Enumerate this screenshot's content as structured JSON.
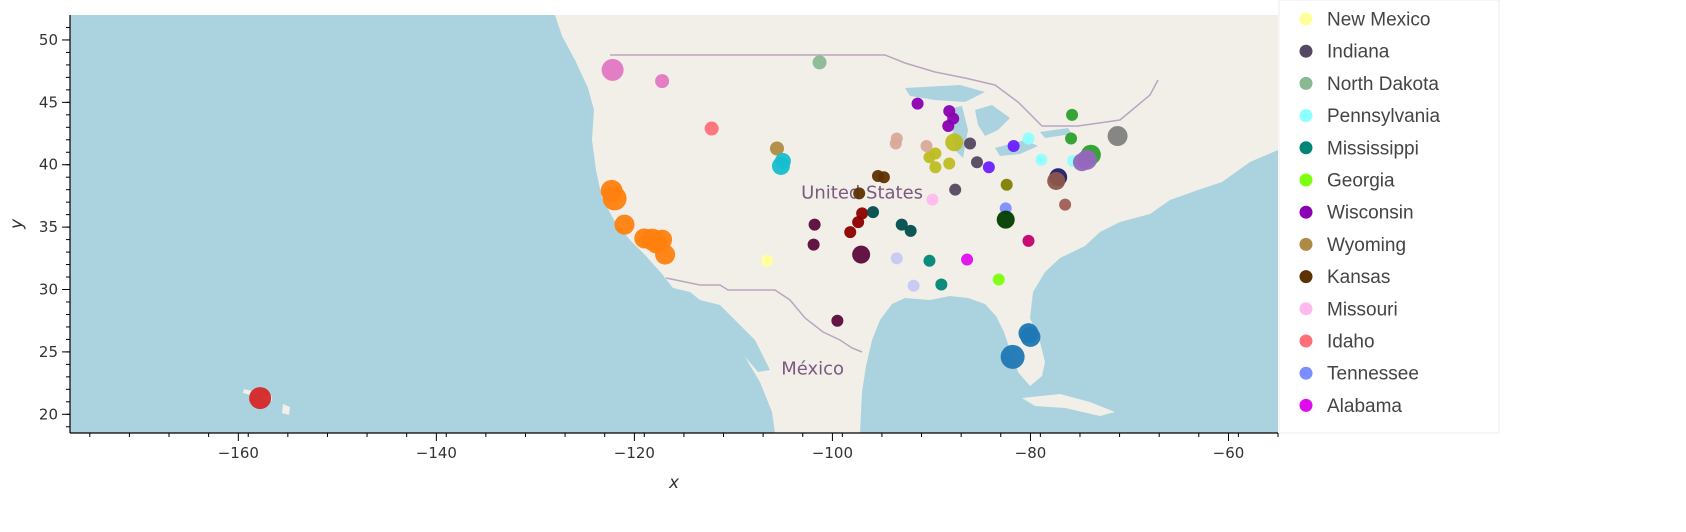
{
  "chart_data": {
    "type": "scatter",
    "xlabel": "x",
    "ylabel": "y",
    "xlim": [
      -177,
      -55
    ],
    "ylim": [
      18.5,
      52
    ],
    "x_ticks": [
      -160,
      -140,
      -120,
      -100,
      -80,
      -60
    ],
    "y_ticks": [
      20,
      25,
      30,
      35,
      40,
      45,
      50
    ],
    "basemap": {
      "ocean_color": "#aad3df",
      "land_color": "#f2efe9",
      "labels": [
        {
          "text": "United States",
          "lon": -97,
          "lat": 37.3
        },
        {
          "text": "México",
          "lon": -102,
          "lat": 23.2
        }
      ]
    },
    "legend": [
      {
        "name": "New Mexico",
        "color": "#ffff9a"
      },
      {
        "name": "Indiana",
        "color": "#544863"
      },
      {
        "name": "North Dakota",
        "color": "#8ab892"
      },
      {
        "name": "Pennsylvania",
        "color": "#8effff"
      },
      {
        "name": "Mississippi",
        "color": "#008676"
      },
      {
        "name": "Georgia",
        "color": "#7dff0f"
      },
      {
        "name": "Wisconsin",
        "color": "#8a00b2"
      },
      {
        "name": "Wyoming",
        "color": "#ad8b43"
      },
      {
        "name": "Kansas",
        "color": "#5e3100"
      },
      {
        "name": "Missouri",
        "color": "#ffbaed"
      },
      {
        "name": "Idaho",
        "color": "#ff7077"
      },
      {
        "name": "Tennessee",
        "color": "#7b8dff"
      },
      {
        "name": "Alabama",
        "color": "#e00cf0"
      }
    ],
    "points": [
      {
        "x": -157.8,
        "y": 21.3,
        "r": 11,
        "color": "#d62728"
      },
      {
        "x": -122.2,
        "y": 47.6,
        "r": 11,
        "color": "#e377c2"
      },
      {
        "x": -117.2,
        "y": 46.7,
        "r": 7,
        "color": "#e377c2"
      },
      {
        "x": -112.2,
        "y": 42.9,
        "r": 7,
        "color": "#ff7077"
      },
      {
        "x": -101.3,
        "y": 48.2,
        "r": 7,
        "color": "#8ab892"
      },
      {
        "x": -105.6,
        "y": 41.3,
        "r": 7,
        "color": "#ad8b43"
      },
      {
        "x": -105.0,
        "y": 40.3,
        "r": 8,
        "color": "#17becf"
      },
      {
        "x": -105.2,
        "y": 39.9,
        "r": 9,
        "color": "#17becf"
      },
      {
        "x": -122.3,
        "y": 37.9,
        "r": 11,
        "color": "#ff7f0e"
      },
      {
        "x": -122.0,
        "y": 37.3,
        "r": 12,
        "color": "#ff7f0e"
      },
      {
        "x": -121.0,
        "y": 35.2,
        "r": 10,
        "color": "#ff7f0e"
      },
      {
        "x": -119.0,
        "y": 34.1,
        "r": 10,
        "color": "#ff7f0e"
      },
      {
        "x": -118.2,
        "y": 34.0,
        "r": 11,
        "color": "#ff7f0e"
      },
      {
        "x": -117.8,
        "y": 33.7,
        "r": 10,
        "color": "#ff7f0e"
      },
      {
        "x": -117.2,
        "y": 34.0,
        "r": 10,
        "color": "#ff7f0e"
      },
      {
        "x": -116.9,
        "y": 32.8,
        "r": 10,
        "color": "#ff7f0e"
      },
      {
        "x": -106.6,
        "y": 32.3,
        "r": 6,
        "color": "#ffff9a"
      },
      {
        "x": -101.8,
        "y": 35.2,
        "r": 6,
        "color": "#5b0a3a"
      },
      {
        "x": -101.9,
        "y": 33.6,
        "r": 6,
        "color": "#5b0a3a"
      },
      {
        "x": -97.1,
        "y": 32.8,
        "r": 9,
        "color": "#5b0a3a"
      },
      {
        "x": -99.5,
        "y": 27.5,
        "r": 6,
        "color": "#5b0a3a"
      },
      {
        "x": -97.3,
        "y": 37.7,
        "r": 6,
        "color": "#5e3100"
      },
      {
        "x": -95.4,
        "y": 39.1,
        "r": 6,
        "color": "#5e3100"
      },
      {
        "x": -94.8,
        "y": 39.0,
        "r": 6,
        "color": "#5e3100"
      },
      {
        "x": -97.0,
        "y": 36.1,
        "r": 6,
        "color": "#8b0000"
      },
      {
        "x": -97.4,
        "y": 35.4,
        "r": 6,
        "color": "#8b0000"
      },
      {
        "x": -98.2,
        "y": 34.6,
        "r": 6,
        "color": "#8b0000"
      },
      {
        "x": -95.9,
        "y": 36.2,
        "r": 6,
        "color": "#004d4d"
      },
      {
        "x": -93.0,
        "y": 35.2,
        "r": 6,
        "color": "#004d4d"
      },
      {
        "x": -92.1,
        "y": 34.7,
        "r": 6,
        "color": "#004d4d"
      },
      {
        "x": -93.5,
        "y": 32.5,
        "r": 6,
        "color": "#c6c8f5"
      },
      {
        "x": -91.8,
        "y": 30.3,
        "r": 6,
        "color": "#c6c8f5"
      },
      {
        "x": -90.2,
        "y": 32.3,
        "r": 6,
        "color": "#008676"
      },
      {
        "x": -89.0,
        "y": 30.4,
        "r": 6,
        "color": "#008676"
      },
      {
        "x": -93.6,
        "y": 41.7,
        "r": 6,
        "color": "#d9a99a"
      },
      {
        "x": -93.5,
        "y": 42.1,
        "r": 6,
        "color": "#d9a99a"
      },
      {
        "x": -90.5,
        "y": 41.5,
        "r": 6,
        "color": "#d9a99a"
      },
      {
        "x": -91.4,
        "y": 44.9,
        "r": 6,
        "color": "#8a00b2"
      },
      {
        "x": -88.2,
        "y": 44.3,
        "r": 6,
        "color": "#8a00b2"
      },
      {
        "x": -87.8,
        "y": 43.7,
        "r": 6,
        "color": "#8a00b2"
      },
      {
        "x": -88.3,
        "y": 43.1,
        "r": 6,
        "color": "#8a00b2"
      },
      {
        "x": -87.7,
        "y": 41.8,
        "r": 9,
        "color": "#bcbd22"
      },
      {
        "x": -89.6,
        "y": 40.9,
        "r": 6,
        "color": "#bcbd22"
      },
      {
        "x": -90.2,
        "y": 40.6,
        "r": 6,
        "color": "#bcbd22"
      },
      {
        "x": -89.6,
        "y": 39.8,
        "r": 6,
        "color": "#bcbd22"
      },
      {
        "x": -88.2,
        "y": 40.1,
        "r": 6,
        "color": "#bcbd22"
      },
      {
        "x": -86.1,
        "y": 41.7,
        "r": 6,
        "color": "#544863"
      },
      {
        "x": -85.4,
        "y": 40.2,
        "r": 6,
        "color": "#544863"
      },
      {
        "x": -87.6,
        "y": 38.0,
        "r": 6,
        "color": "#544863"
      },
      {
        "x": -89.9,
        "y": 37.2,
        "r": 6,
        "color": "#ffbaed"
      },
      {
        "x": -84.2,
        "y": 39.8,
        "r": 6,
        "color": "#6a1fff"
      },
      {
        "x": -81.7,
        "y": 41.5,
        "r": 6,
        "color": "#6a1fff"
      },
      {
        "x": -82.4,
        "y": 38.4,
        "r": 6,
        "color": "#808000"
      },
      {
        "x": -80.2,
        "y": 42.1,
        "r": 6,
        "color": "#8effff"
      },
      {
        "x": -78.9,
        "y": 40.4,
        "r": 6,
        "color": "#8effff"
      },
      {
        "x": -75.7,
        "y": 40.3,
        "r": 6,
        "color": "#8effff"
      },
      {
        "x": -82.5,
        "y": 36.5,
        "r": 6,
        "color": "#7b8dff"
      },
      {
        "x": -82.5,
        "y": 35.6,
        "r": 9,
        "color": "#003d00"
      },
      {
        "x": -86.4,
        "y": 32.4,
        "r": 6,
        "color": "#e00cf0"
      },
      {
        "x": -83.2,
        "y": 30.8,
        "r": 6,
        "color": "#7dff0f"
      },
      {
        "x": -80.2,
        "y": 33.9,
        "r": 6,
        "color": "#c2006b"
      },
      {
        "x": -76.5,
        "y": 36.8,
        "r": 6,
        "color": "#a05d56"
      },
      {
        "x": -75.8,
        "y": 44.0,
        "r": 6,
        "color": "#2ca02c"
      },
      {
        "x": -75.9,
        "y": 42.1,
        "r": 6,
        "color": "#2ca02c"
      },
      {
        "x": -73.9,
        "y": 40.8,
        "r": 10,
        "color": "#2ca02c"
      },
      {
        "x": -71.2,
        "y": 42.3,
        "r": 10,
        "color": "#7f7f7f"
      },
      {
        "x": -74.3,
        "y": 40.4,
        "r": 10,
        "color": "#9467bd"
      },
      {
        "x": -74.8,
        "y": 40.2,
        "r": 9,
        "color": "#9467bd"
      },
      {
        "x": -77.2,
        "y": 39.0,
        "r": 9,
        "color": "#1f1f6b"
      },
      {
        "x": -77.4,
        "y": 38.7,
        "r": 9,
        "color": "#8c564b"
      },
      {
        "x": -80.2,
        "y": 26.5,
        "r": 10,
        "color": "#1f77b4"
      },
      {
        "x": -80.0,
        "y": 26.2,
        "r": 10,
        "color": "#1f77b4"
      },
      {
        "x": -81.8,
        "y": 24.6,
        "r": 12,
        "color": "#1f77b4"
      }
    ]
  }
}
